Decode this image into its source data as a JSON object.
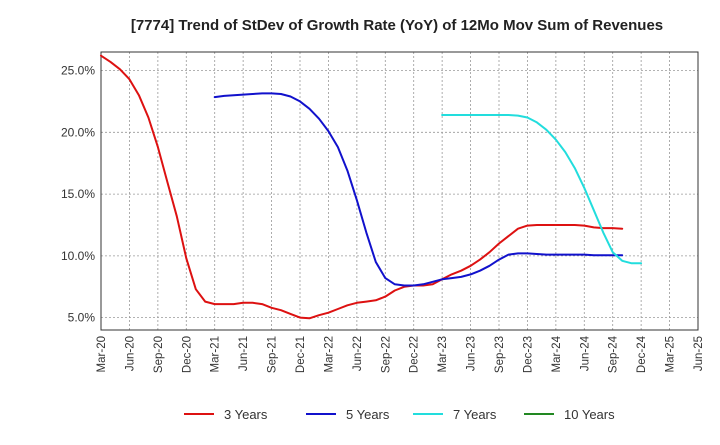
{
  "chart_data": {
    "type": "line",
    "title": "[7774]  Trend of StDev of Growth Rate (YoY) of 12Mo Mov Sum of Revenues",
    "xlabel": "",
    "ylabel": "",
    "x_ticks": [
      "Mar-20",
      "Jun-20",
      "Sep-20",
      "Dec-20",
      "Mar-21",
      "Jun-21",
      "Sep-21",
      "Dec-21",
      "Mar-22",
      "Jun-22",
      "Sep-22",
      "Dec-22",
      "Mar-23",
      "Jun-23",
      "Sep-23",
      "Dec-23",
      "Mar-24",
      "Jun-24",
      "Sep-24",
      "Dec-24",
      "Mar-25",
      "Jun-25"
    ],
    "y_ticks": [
      5.0,
      10.0,
      15.0,
      20.0,
      25.0
    ],
    "y_tick_labels": [
      "5.0%",
      "10.0%",
      "15.0%",
      "20.0%",
      "25.0%"
    ],
    "ylim": [
      4.0,
      26.5
    ],
    "grid": true,
    "legend_position": "bottom",
    "series": [
      {
        "name": "3 Years",
        "color": "#dd1111",
        "start_index": 0,
        "values": [
          26.2,
          25.7,
          25.1,
          24.3,
          23.0,
          21.2,
          18.8,
          16.0,
          13.2,
          9.8,
          7.3,
          6.3,
          6.1,
          6.1,
          6.1,
          6.2,
          6.2,
          6.1,
          5.8,
          5.6,
          5.3,
          5.0,
          4.95,
          5.2,
          5.4,
          5.7,
          6.0,
          6.2,
          6.3,
          6.4,
          6.7,
          7.2,
          7.5,
          7.6,
          7.6,
          7.7,
          8.1,
          8.5,
          8.8,
          9.2,
          9.7,
          10.3,
          11.0,
          11.6,
          12.2,
          12.45,
          12.5,
          12.5,
          12.5,
          12.5,
          12.5,
          12.45,
          12.3,
          12.25,
          12.25,
          12.2
        ]
      },
      {
        "name": "5 Years",
        "color": "#1111cc",
        "start_index": 12,
        "values": [
          22.85,
          22.95,
          23.0,
          23.05,
          23.1,
          23.15,
          23.15,
          23.1,
          22.9,
          22.5,
          21.9,
          21.1,
          20.1,
          18.8,
          16.9,
          14.5,
          11.9,
          9.5,
          8.2,
          7.7,
          7.6,
          7.6,
          7.7,
          7.9,
          8.1,
          8.2,
          8.3,
          8.5,
          8.8,
          9.2,
          9.7,
          10.1,
          10.2,
          10.2,
          10.15,
          10.1,
          10.1,
          10.1,
          10.1,
          10.1,
          10.05,
          10.05,
          10.05,
          10.05
        ]
      },
      {
        "name": "7 Years",
        "color": "#22dddd",
        "start_index": 36,
        "values": [
          21.4,
          21.4,
          21.4,
          21.4,
          21.4,
          21.4,
          21.4,
          21.4,
          21.35,
          21.2,
          20.8,
          20.2,
          19.4,
          18.4,
          17.1,
          15.5,
          13.7,
          11.9,
          10.3,
          9.6,
          9.4,
          9.4
        ]
      },
      {
        "name": "10 Years",
        "color": "#228822",
        "start_index": 0,
        "values": []
      }
    ]
  }
}
